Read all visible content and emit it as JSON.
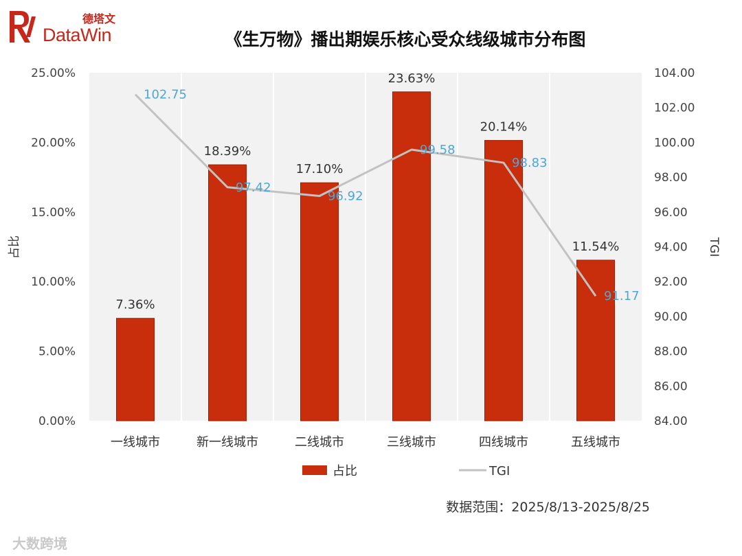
{
  "brand": {
    "name": "DataWin",
    "name_cn": "德塔文"
  },
  "footnote": "数据范围：2025/8/13-2025/8/25",
  "watermark": "大数跨境",
  "colors": {
    "bar": "#c82e0c",
    "bar_edge": "#9e1d05",
    "line": "#c2c2c2",
    "line_label": "#4aa8d8",
    "brand": "#c8261a"
  },
  "chart_data": {
    "type": "bar",
    "title": "《生万物》播出期娱乐核心受众线级城市分布图",
    "categories": [
      "一线城市",
      "新一线城市",
      "二线城市",
      "三线城市",
      "四线城市",
      "五线城市"
    ],
    "series": [
      {
        "name": "占比",
        "type": "bar",
        "axis": "left",
        "values": [
          7.36,
          18.39,
          17.1,
          23.63,
          20.14,
          11.54
        ],
        "labels": [
          "7.36%",
          "18.39%",
          "17.10%",
          "23.63%",
          "20.14%",
          "11.54%"
        ]
      },
      {
        "name": "TGI",
        "type": "line",
        "axis": "right",
        "values": [
          102.75,
          97.42,
          96.92,
          99.58,
          98.83,
          91.17
        ],
        "labels": [
          "102.75",
          "97.42",
          "96.92",
          "99.58",
          "98.83",
          "91.17"
        ]
      }
    ],
    "y_left": {
      "label": "占比",
      "ylim": [
        0,
        25
      ],
      "ticks": [
        "0.00%",
        "5.00%",
        "10.00%",
        "15.00%",
        "20.00%",
        "25.00%"
      ]
    },
    "y_right": {
      "label": "TGI",
      "ylim": [
        84,
        104
      ],
      "ticks": [
        "84.00",
        "86.00",
        "88.00",
        "90.00",
        "92.00",
        "94.00",
        "96.00",
        "98.00",
        "100.00",
        "102.00",
        "104.00"
      ]
    },
    "grid": "vertical",
    "legend": "bottom"
  }
}
